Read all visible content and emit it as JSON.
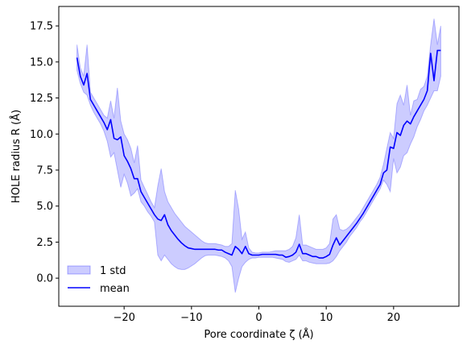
{
  "chart_data": {
    "type": "line",
    "title": "",
    "xlabel": "Pore coordinate ζ (Å)",
    "ylabel": "HOLE radius R (Å)",
    "xlim": [
      -29.7,
      29.7
    ],
    "ylim": [
      -1.95,
      18.85
    ],
    "xticks": [
      -20,
      -10,
      0,
      10,
      20
    ],
    "yticks": [
      0.0,
      2.5,
      5.0,
      7.5,
      10.0,
      12.5,
      15.0,
      17.5
    ],
    "xtick_labels": [
      "−20",
      "−10",
      "0",
      "10",
      "20"
    ],
    "ytick_labels": [
      "0.0",
      "2.5",
      "5.0",
      "7.5",
      "10.0",
      "12.5",
      "15.0",
      "17.5"
    ],
    "grid": false,
    "legend": {
      "position": "lower-left",
      "frame": false
    },
    "series": [
      {
        "name": "mean",
        "kind": "line",
        "color": "#0000ff",
        "x": [
          -27,
          -26.5,
          -26,
          -25.5,
          -25,
          -24.5,
          -24,
          -23.5,
          -23,
          -22.5,
          -22,
          -21.5,
          -21,
          -20.5,
          -20,
          -19.5,
          -19,
          -18.5,
          -18,
          -17.5,
          -17,
          -16.5,
          -16,
          -15.5,
          -15,
          -14.5,
          -14,
          -13.5,
          -13,
          -12.5,
          -12,
          -11.5,
          -11,
          -10.5,
          -10,
          -9.5,
          -9,
          -8.5,
          -8,
          -7.5,
          -7,
          -6.5,
          -6,
          -5.5,
          -5,
          -4.5,
          -4,
          -3.5,
          -3,
          -2.5,
          -2,
          -1.5,
          -1,
          -0.5,
          0,
          0.5,
          1,
          1.5,
          2,
          2.5,
          3,
          3.5,
          4,
          4.5,
          5,
          5.5,
          6,
          6.5,
          7,
          7.5,
          8,
          8.5,
          9,
          9.5,
          10,
          10.5,
          11,
          11.5,
          12,
          12.5,
          13,
          13.5,
          14,
          14.5,
          15,
          15.5,
          16,
          16.5,
          17,
          17.5,
          18,
          18.5,
          19,
          19.5,
          20,
          20.5,
          21,
          21.5,
          22,
          22.5,
          23,
          23.5,
          24,
          24.5,
          25,
          25.5,
          26,
          26.5,
          27
        ],
        "y": [
          15.3,
          14.0,
          13.4,
          14.2,
          12.4,
          12.0,
          11.6,
          11.2,
          10.8,
          10.3,
          11.0,
          9.7,
          9.6,
          9.8,
          8.5,
          8.1,
          7.6,
          6.9,
          6.9,
          6.0,
          5.6,
          5.2,
          4.8,
          4.4,
          4.1,
          4.0,
          4.4,
          3.7,
          3.3,
          3.0,
          2.7,
          2.45,
          2.25,
          2.1,
          2.05,
          2.0,
          2.0,
          2.0,
          2.0,
          2.0,
          2.0,
          2.0,
          1.95,
          1.95,
          1.8,
          1.7,
          1.6,
          2.2,
          2.0,
          1.7,
          2.2,
          1.7,
          1.6,
          1.6,
          1.6,
          1.65,
          1.65,
          1.65,
          1.65,
          1.65,
          1.6,
          1.6,
          1.45,
          1.5,
          1.6,
          1.8,
          2.35,
          1.7,
          1.7,
          1.6,
          1.5,
          1.5,
          1.4,
          1.4,
          1.5,
          1.65,
          2.3,
          2.8,
          2.3,
          2.6,
          2.9,
          3.2,
          3.5,
          3.8,
          4.15,
          4.5,
          4.9,
          5.3,
          5.7,
          6.1,
          6.5,
          7.3,
          7.5,
          9.1,
          9.0,
          10.1,
          9.9,
          10.6,
          10.9,
          10.7,
          11.2,
          11.6,
          12.0,
          12.4,
          13.0,
          15.6,
          13.7,
          15.8,
          15.8
        ]
      },
      {
        "name": "1 std",
        "kind": "band",
        "color": "#0000ff",
        "fill_opacity": 0.2,
        "x": [
          -27,
          -26.5,
          -26,
          -25.5,
          -25,
          -24.5,
          -24,
          -23.5,
          -23,
          -22.5,
          -22,
          -21.5,
          -21,
          -20.5,
          -20,
          -19.5,
          -19,
          -18.5,
          -18,
          -17.5,
          -17,
          -16.5,
          -16,
          -15.5,
          -15,
          -14.5,
          -14,
          -13.5,
          -13,
          -12.5,
          -12,
          -11.5,
          -11,
          -10.5,
          -10,
          -9.5,
          -9,
          -8.5,
          -8,
          -7.5,
          -7,
          -6.5,
          -6,
          -5.5,
          -5,
          -4.5,
          -4,
          -3.5,
          -3,
          -2.5,
          -2,
          -1.5,
          -1,
          -0.5,
          0,
          0.5,
          1,
          1.5,
          2,
          2.5,
          3,
          3.5,
          4,
          4.5,
          5,
          5.5,
          6,
          6.5,
          7,
          7.5,
          8,
          8.5,
          9,
          9.5,
          10,
          10.5,
          11,
          11.5,
          12,
          12.5,
          13,
          13.5,
          14,
          14.5,
          15,
          15.5,
          16,
          16.5,
          17,
          17.5,
          18,
          18.5,
          19,
          19.5,
          20,
          20.5,
          21,
          21.5,
          22,
          22.5,
          23,
          23.5,
          24,
          24.5,
          25,
          25.5,
          26,
          26.5,
          27
        ],
        "lower": [
          14.4,
          13.5,
          12.9,
          12.7,
          12.0,
          11.5,
          11.1,
          10.7,
          10.2,
          9.5,
          8.4,
          8.7,
          7.5,
          6.3,
          7.2,
          6.6,
          5.7,
          5.9,
          6.2,
          5.3,
          5.0,
          4.6,
          4.3,
          3.9,
          1.6,
          1.2,
          1.6,
          1.3,
          1.0,
          0.8,
          0.65,
          0.6,
          0.6,
          0.7,
          0.85,
          1.0,
          1.2,
          1.4,
          1.55,
          1.6,
          1.6,
          1.6,
          1.55,
          1.5,
          1.4,
          1.2,
          0.8,
          -1.0,
          0.0,
          0.8,
          1.1,
          1.3,
          1.4,
          1.4,
          1.45,
          1.45,
          1.45,
          1.45,
          1.45,
          1.4,
          1.35,
          1.3,
          1.15,
          1.1,
          1.2,
          1.3,
          1.6,
          1.2,
          1.2,
          1.1,
          1.05,
          1.0,
          1.0,
          1.0,
          1.0,
          1.05,
          1.2,
          1.5,
          1.9,
          2.2,
          2.5,
          2.9,
          3.2,
          3.5,
          3.9,
          4.2,
          4.6,
          5.0,
          5.4,
          5.8,
          6.2,
          6.8,
          6.5,
          6.0,
          8.3,
          7.3,
          7.7,
          8.5,
          8.7,
          9.3,
          9.8,
          10.5,
          11.0,
          11.6,
          12.0,
          12.5,
          13.0,
          13.0,
          14.0
        ],
        "upper": [
          16.2,
          14.6,
          14.0,
          16.2,
          12.9,
          12.5,
          12.1,
          11.7,
          11.3,
          11.1,
          12.3,
          11.1,
          13.2,
          10.9,
          10.0,
          9.6,
          9.0,
          8.0,
          9.2,
          6.8,
          6.3,
          5.8,
          5.3,
          4.9,
          6.4,
          7.6,
          6.0,
          5.3,
          4.9,
          4.5,
          4.2,
          3.9,
          3.6,
          3.4,
          3.2,
          3.0,
          2.8,
          2.6,
          2.45,
          2.4,
          2.4,
          2.4,
          2.35,
          2.3,
          2.2,
          2.2,
          2.4,
          6.1,
          4.8,
          2.7,
          3.2,
          2.1,
          1.8,
          1.75,
          1.75,
          1.8,
          1.8,
          1.8,
          1.85,
          1.9,
          1.9,
          1.9,
          1.9,
          2.0,
          2.2,
          2.8,
          4.4,
          2.3,
          2.3,
          2.2,
          2.1,
          2.0,
          2.0,
          2.0,
          2.1,
          2.4,
          4.1,
          4.4,
          3.4,
          3.3,
          3.4,
          3.6,
          3.9,
          4.2,
          4.5,
          4.9,
          5.3,
          5.7,
          6.1,
          6.5,
          7.0,
          7.9,
          9.0,
          10.1,
          9.7,
          12.1,
          12.7,
          12.0,
          13.4,
          11.3,
          12.3,
          12.4,
          13.1,
          13.3,
          14.0,
          16.2,
          18.0,
          16.2,
          17.5
        ]
      }
    ]
  }
}
